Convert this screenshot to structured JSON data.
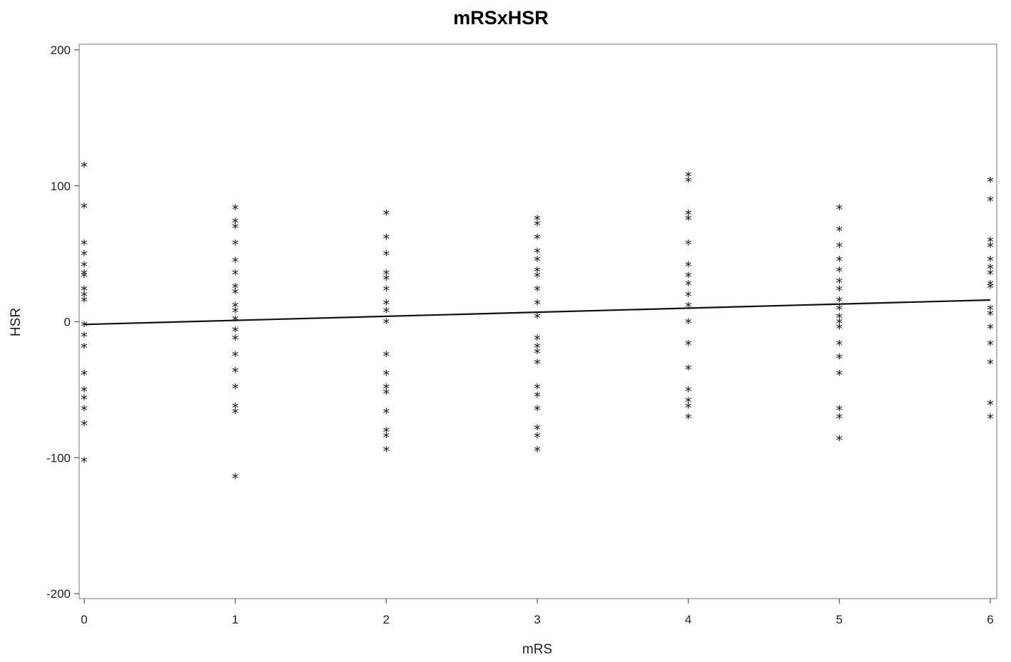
{
  "chart_data": {
    "type": "scatter",
    "title": "mRSxHSR",
    "xlabel": "mRS",
    "ylabel": "HSR",
    "xlim": [
      0,
      6
    ],
    "ylim": [
      -200,
      200
    ],
    "x_ticks": [
      0,
      1,
      2,
      3,
      4,
      5,
      6
    ],
    "y_ticks": [
      -200,
      -100,
      0,
      100,
      200
    ],
    "marker": "*",
    "grid": false,
    "points": [
      {
        "x": 0,
        "y": 115
      },
      {
        "x": 0,
        "y": 85
      },
      {
        "x": 0,
        "y": 58
      },
      {
        "x": 0,
        "y": 50
      },
      {
        "x": 0,
        "y": 42
      },
      {
        "x": 0,
        "y": 36
      },
      {
        "x": 0,
        "y": 34
      },
      {
        "x": 0,
        "y": 24
      },
      {
        "x": 0,
        "y": 20
      },
      {
        "x": 0,
        "y": 16
      },
      {
        "x": 0,
        "y": -2
      },
      {
        "x": 0,
        "y": -10
      },
      {
        "x": 0,
        "y": -18
      },
      {
        "x": 0,
        "y": -38
      },
      {
        "x": 0,
        "y": -50
      },
      {
        "x": 0,
        "y": -56
      },
      {
        "x": 0,
        "y": -64
      },
      {
        "x": 0,
        "y": -75
      },
      {
        "x": 0,
        "y": -102
      },
      {
        "x": 1,
        "y": 84
      },
      {
        "x": 1,
        "y": 74
      },
      {
        "x": 1,
        "y": 70
      },
      {
        "x": 1,
        "y": 58
      },
      {
        "x": 1,
        "y": 45
      },
      {
        "x": 1,
        "y": 36
      },
      {
        "x": 1,
        "y": 26
      },
      {
        "x": 1,
        "y": 22
      },
      {
        "x": 1,
        "y": 12
      },
      {
        "x": 1,
        "y": 8
      },
      {
        "x": 1,
        "y": 2
      },
      {
        "x": 1,
        "y": -6
      },
      {
        "x": 1,
        "y": -12
      },
      {
        "x": 1,
        "y": -24
      },
      {
        "x": 1,
        "y": -36
      },
      {
        "x": 1,
        "y": -48
      },
      {
        "x": 1,
        "y": -62
      },
      {
        "x": 1,
        "y": -66
      },
      {
        "x": 1,
        "y": -114
      },
      {
        "x": 2,
        "y": 80
      },
      {
        "x": 2,
        "y": 62
      },
      {
        "x": 2,
        "y": 50
      },
      {
        "x": 2,
        "y": 36
      },
      {
        "x": 2,
        "y": 32
      },
      {
        "x": 2,
        "y": 24
      },
      {
        "x": 2,
        "y": 14
      },
      {
        "x": 2,
        "y": 8
      },
      {
        "x": 2,
        "y": 0
      },
      {
        "x": 2,
        "y": -24
      },
      {
        "x": 2,
        "y": -38
      },
      {
        "x": 2,
        "y": -48
      },
      {
        "x": 2,
        "y": -52
      },
      {
        "x": 2,
        "y": -66
      },
      {
        "x": 2,
        "y": -80
      },
      {
        "x": 2,
        "y": -84
      },
      {
        "x": 2,
        "y": -94
      },
      {
        "x": 3,
        "y": 76
      },
      {
        "x": 3,
        "y": 72
      },
      {
        "x": 3,
        "y": 62
      },
      {
        "x": 3,
        "y": 52
      },
      {
        "x": 3,
        "y": 46
      },
      {
        "x": 3,
        "y": 38
      },
      {
        "x": 3,
        "y": 34
      },
      {
        "x": 3,
        "y": 24
      },
      {
        "x": 3,
        "y": 14
      },
      {
        "x": 3,
        "y": 4
      },
      {
        "x": 3,
        "y": -12
      },
      {
        "x": 3,
        "y": -18
      },
      {
        "x": 3,
        "y": -22
      },
      {
        "x": 3,
        "y": -30
      },
      {
        "x": 3,
        "y": -48
      },
      {
        "x": 3,
        "y": -54
      },
      {
        "x": 3,
        "y": -64
      },
      {
        "x": 3,
        "y": -78
      },
      {
        "x": 3,
        "y": -84
      },
      {
        "x": 3,
        "y": -94
      },
      {
        "x": 4,
        "y": 108
      },
      {
        "x": 4,
        "y": 104
      },
      {
        "x": 4,
        "y": 80
      },
      {
        "x": 4,
        "y": 76
      },
      {
        "x": 4,
        "y": 58
      },
      {
        "x": 4,
        "y": 42
      },
      {
        "x": 4,
        "y": 34
      },
      {
        "x": 4,
        "y": 28
      },
      {
        "x": 4,
        "y": 20
      },
      {
        "x": 4,
        "y": 12
      },
      {
        "x": 4,
        "y": 0
      },
      {
        "x": 4,
        "y": -16
      },
      {
        "x": 4,
        "y": -34
      },
      {
        "x": 4,
        "y": -50
      },
      {
        "x": 4,
        "y": -58
      },
      {
        "x": 4,
        "y": -62
      },
      {
        "x": 4,
        "y": -70
      },
      {
        "x": 5,
        "y": 84
      },
      {
        "x": 5,
        "y": 68
      },
      {
        "x": 5,
        "y": 56
      },
      {
        "x": 5,
        "y": 46
      },
      {
        "x": 5,
        "y": 38
      },
      {
        "x": 5,
        "y": 30
      },
      {
        "x": 5,
        "y": 24
      },
      {
        "x": 5,
        "y": 16
      },
      {
        "x": 5,
        "y": 10
      },
      {
        "x": 5,
        "y": 4
      },
      {
        "x": 5,
        "y": 0
      },
      {
        "x": 5,
        "y": -4
      },
      {
        "x": 5,
        "y": -16
      },
      {
        "x": 5,
        "y": -26
      },
      {
        "x": 5,
        "y": -38
      },
      {
        "x": 5,
        "y": -64
      },
      {
        "x": 5,
        "y": -70
      },
      {
        "x": 5,
        "y": -86
      },
      {
        "x": 6,
        "y": 104
      },
      {
        "x": 6,
        "y": 90
      },
      {
        "x": 6,
        "y": 60
      },
      {
        "x": 6,
        "y": 56
      },
      {
        "x": 6,
        "y": 46
      },
      {
        "x": 6,
        "y": 40
      },
      {
        "x": 6,
        "y": 36
      },
      {
        "x": 6,
        "y": 28
      },
      {
        "x": 6,
        "y": 26
      },
      {
        "x": 6,
        "y": 10
      },
      {
        "x": 6,
        "y": 6
      },
      {
        "x": 6,
        "y": -4
      },
      {
        "x": 6,
        "y": -16
      },
      {
        "x": 6,
        "y": -30
      },
      {
        "x": 6,
        "y": -60
      },
      {
        "x": 6,
        "y": -70
      }
    ],
    "fit_line": {
      "x": [
        0,
        6
      ],
      "y": [
        -2,
        16
      ]
    }
  }
}
